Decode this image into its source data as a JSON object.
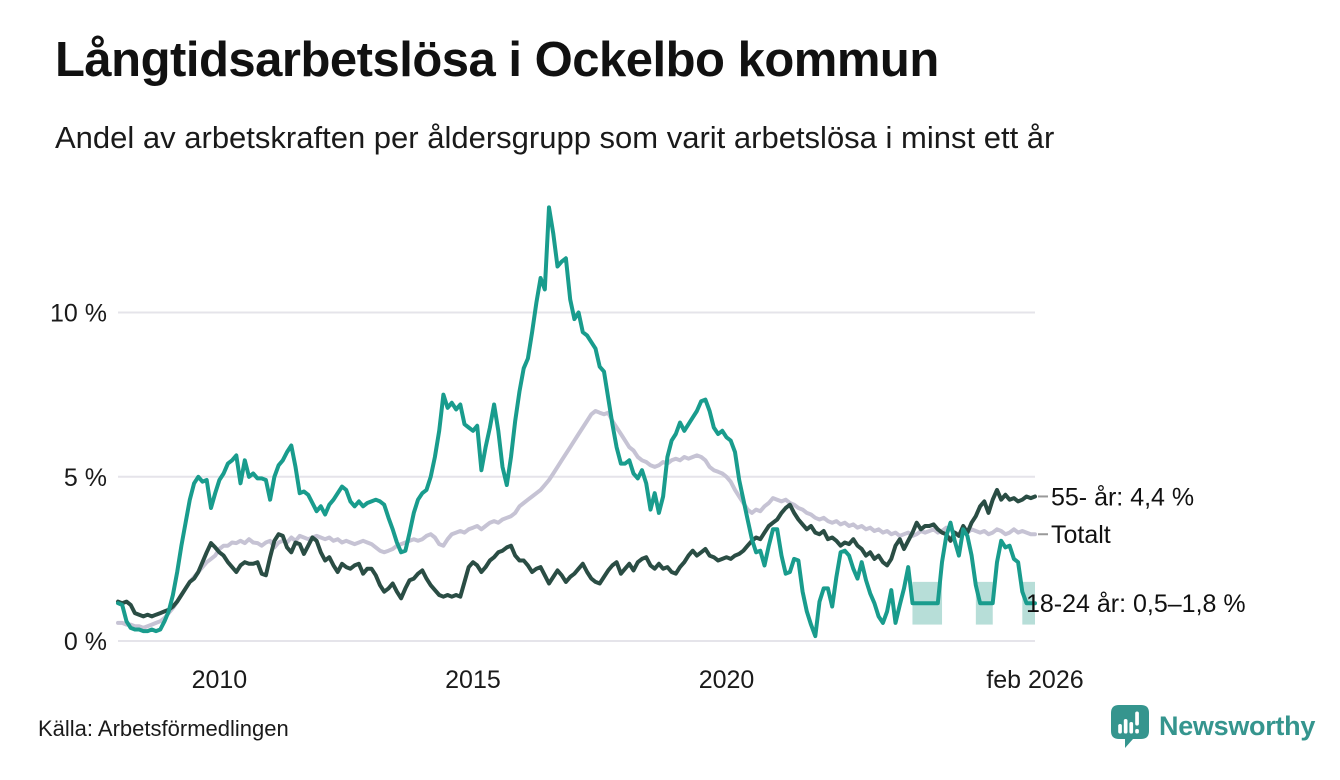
{
  "header": {
    "title": "Långtidsarbetslösa i Ockelbo kommun",
    "subtitle": "Andel av arbetskraften per åldersgrupp som varit arbetslösa i minst ett år"
  },
  "footer": {
    "source": "Källa: Arbetsförmedlingen",
    "logo_text": "Newsworthy"
  },
  "colors": {
    "teal_line": "#199c8d",
    "dark_line": "#2a4d44",
    "lavender_line": "#c6c3d4",
    "band_fill": "#b7ded8",
    "gridline": "#e5e4ea",
    "connector": "#999999",
    "text": "#1a1a1a",
    "logo_teal": "#35958e"
  },
  "chart_data": {
    "type": "line",
    "title": "Långtidsarbetslösa i Ockelbo kommun",
    "subtitle": "Andel av arbetskraften per åldersgrupp som varit arbetslösa i minst ett år",
    "unit": "%",
    "x_start": "2008-01",
    "x_end": "2026-02",
    "x_step": "month",
    "ylim": [
      0,
      13.6
    ],
    "grid": "horizontal-only",
    "legend": "end-of-line-labels",
    "y_ticks": [
      {
        "value": 0,
        "label": "0 %"
      },
      {
        "value": 5,
        "label": "5 %"
      },
      {
        "value": 10,
        "label": "10 %"
      }
    ],
    "x_ticks": [
      {
        "index": 24,
        "label": "2010"
      },
      {
        "index": 84,
        "label": "2015"
      },
      {
        "index": 144,
        "label": "2020"
      },
      {
        "index": 217,
        "label": "feb 2026"
      }
    ],
    "series": [
      {
        "name": "Totalt",
        "color_key": "lavender_line",
        "end_label": "Totalt",
        "connector": true,
        "values": [
          0.55,
          0.55,
          0.5,
          0.5,
          0.45,
          0.45,
          0.4,
          0.45,
          0.5,
          0.55,
          0.6,
          0.7,
          0.85,
          1.0,
          1.2,
          1.4,
          1.6,
          1.8,
          1.95,
          2.1,
          2.25,
          2.4,
          2.5,
          2.6,
          2.8,
          2.9,
          2.9,
          3.0,
          2.98,
          3.05,
          2.98,
          3.1,
          3.0,
          2.98,
          2.9,
          3.0,
          3.05,
          2.85,
          3.0,
          3.05,
          3.0,
          3.15,
          3.05,
          3.2,
          3.15,
          3.1,
          3.15,
          3.2,
          3.15,
          3.1,
          3.15,
          3.05,
          3.1,
          3.0,
          3.05,
          3.0,
          2.95,
          3.0,
          3.05,
          3.0,
          2.95,
          2.85,
          2.75,
          2.7,
          2.75,
          2.8,
          2.9,
          2.95,
          3.0,
          3.05,
          3.1,
          3.05,
          3.1,
          3.2,
          3.25,
          3.15,
          2.95,
          2.9,
          3.1,
          3.25,
          3.3,
          3.35,
          3.3,
          3.4,
          3.45,
          3.5,
          3.4,
          3.5,
          3.6,
          3.65,
          3.6,
          3.7,
          3.75,
          3.8,
          3.9,
          4.1,
          4.2,
          4.3,
          4.4,
          4.5,
          4.6,
          4.75,
          4.9,
          5.1,
          5.3,
          5.5,
          5.7,
          5.9,
          6.1,
          6.3,
          6.5,
          6.7,
          6.9,
          7.0,
          6.95,
          6.9,
          6.95,
          6.7,
          6.5,
          6.3,
          6.1,
          5.9,
          5.8,
          5.6,
          5.5,
          5.45,
          5.35,
          5.3,
          5.35,
          5.45,
          5.4,
          5.5,
          5.55,
          5.5,
          5.6,
          5.55,
          5.6,
          5.65,
          5.6,
          5.5,
          5.3,
          5.2,
          5.15,
          5.1,
          5.0,
          4.85,
          4.6,
          4.4,
          4.2,
          4.0,
          3.9,
          4.0,
          3.95,
          4.1,
          4.2,
          4.35,
          4.3,
          4.25,
          4.3,
          4.2,
          4.15,
          4.05,
          4.0,
          3.9,
          3.85,
          3.75,
          3.7,
          3.75,
          3.65,
          3.6,
          3.65,
          3.55,
          3.6,
          3.5,
          3.55,
          3.45,
          3.5,
          3.4,
          3.45,
          3.35,
          3.4,
          3.3,
          3.35,
          3.25,
          3.3,
          3.2,
          3.25,
          3.3,
          3.2,
          3.25,
          3.35,
          3.3,
          3.35,
          3.4,
          3.3,
          3.35,
          3.45,
          3.4,
          3.3,
          3.25,
          3.35,
          3.3,
          3.4,
          3.35,
          3.3,
          3.35,
          3.25,
          3.3,
          3.4,
          3.35,
          3.25,
          3.3,
          3.4,
          3.3,
          3.35,
          3.3,
          3.25,
          3.25
        ]
      },
      {
        "name": "55- år",
        "color_key": "dark_line",
        "end_label": "55- år: 4,4 %",
        "connector": true,
        "values": [
          1.2,
          1.15,
          1.2,
          1.1,
          0.85,
          0.8,
          0.75,
          0.8,
          0.75,
          0.8,
          0.85,
          0.9,
          0.95,
          1.05,
          1.2,
          1.4,
          1.6,
          1.8,
          1.9,
          2.1,
          2.4,
          2.7,
          2.98,
          2.85,
          2.7,
          2.6,
          2.4,
          2.25,
          2.1,
          2.3,
          2.4,
          2.35,
          2.35,
          2.4,
          2.05,
          2.0,
          2.55,
          3.05,
          3.25,
          3.2,
          2.85,
          2.7,
          3.0,
          2.95,
          2.65,
          2.9,
          3.15,
          3.05,
          2.7,
          2.45,
          2.55,
          2.3,
          2.1,
          2.35,
          2.25,
          2.2,
          2.3,
          2.35,
          2.05,
          2.2,
          2.2,
          2.0,
          1.7,
          1.5,
          1.6,
          1.75,
          1.5,
          1.3,
          1.6,
          1.85,
          1.9,
          2.05,
          2.15,
          1.9,
          1.7,
          1.55,
          1.4,
          1.35,
          1.4,
          1.35,
          1.4,
          1.35,
          1.8,
          2.25,
          2.4,
          2.3,
          2.1,
          2.25,
          2.45,
          2.55,
          2.7,
          2.75,
          2.85,
          2.9,
          2.6,
          2.45,
          2.45,
          2.3,
          2.1,
          2.2,
          2.25,
          2.0,
          1.75,
          1.95,
          2.15,
          2.0,
          1.8,
          1.95,
          2.05,
          2.2,
          2.35,
          2.1,
          1.9,
          1.8,
          1.75,
          1.95,
          2.15,
          2.3,
          2.4,
          2.05,
          2.2,
          2.35,
          2.15,
          2.4,
          2.5,
          2.55,
          2.3,
          2.2,
          2.35,
          2.2,
          2.25,
          2.1,
          2.05,
          2.25,
          2.4,
          2.6,
          2.75,
          2.6,
          2.7,
          2.8,
          2.6,
          2.55,
          2.45,
          2.5,
          2.55,
          2.5,
          2.6,
          2.65,
          2.75,
          2.9,
          3.05,
          3.15,
          3.1,
          3.3,
          3.5,
          3.6,
          3.7,
          3.9,
          4.05,
          4.15,
          3.9,
          3.7,
          3.55,
          3.4,
          3.5,
          3.3,
          3.25,
          3.35,
          3.1,
          3.15,
          3.05,
          2.9,
          3.0,
          2.95,
          3.1,
          2.9,
          2.8,
          2.6,
          2.7,
          2.5,
          2.6,
          2.4,
          2.3,
          2.5,
          2.9,
          3.1,
          2.8,
          3.05,
          3.3,
          3.6,
          3.4,
          3.5,
          3.5,
          3.55,
          3.4,
          3.3,
          3.25,
          3.05,
          3.3,
          3.2,
          3.5,
          3.3,
          3.6,
          3.8,
          4.1,
          4.25,
          3.9,
          4.3,
          4.6,
          4.3,
          4.45,
          4.3,
          4.35,
          4.25,
          4.3,
          4.4,
          4.35,
          4.4
        ]
      },
      {
        "name": "18-24 år",
        "color_key": "teal_line",
        "end_label": "18-24 år: 0,5–1,8 %",
        "connector": false,
        "values": [
          1.15,
          1.1,
          0.6,
          0.4,
          0.35,
          0.35,
          0.3,
          0.3,
          0.35,
          0.3,
          0.35,
          0.6,
          0.9,
          1.4,
          2.1,
          2.9,
          3.6,
          4.3,
          4.8,
          5.0,
          4.85,
          4.9,
          4.05,
          4.5,
          4.9,
          5.1,
          5.4,
          5.5,
          5.65,
          4.8,
          5.5,
          5.0,
          5.1,
          4.95,
          4.95,
          4.9,
          4.3,
          5.0,
          5.35,
          5.5,
          5.75,
          5.95,
          5.3,
          4.5,
          4.55,
          4.45,
          4.2,
          3.95,
          4.1,
          3.85,
          4.15,
          4.3,
          4.5,
          4.7,
          4.6,
          4.25,
          4.1,
          4.25,
          4.1,
          4.2,
          4.25,
          4.3,
          4.25,
          4.15,
          3.75,
          3.4,
          3.0,
          2.7,
          2.75,
          3.3,
          3.9,
          4.3,
          4.5,
          4.6,
          5.0,
          5.6,
          6.4,
          7.5,
          7.1,
          7.25,
          7.05,
          7.2,
          6.6,
          6.5,
          6.4,
          6.55,
          5.2,
          5.9,
          6.5,
          7.2,
          6.4,
          5.3,
          4.75,
          5.6,
          6.7,
          7.6,
          8.3,
          8.6,
          9.4,
          10.3,
          11.05,
          10.7,
          13.2,
          12.4,
          11.4,
          11.55,
          11.65,
          10.4,
          9.8,
          10.0,
          9.4,
          9.3,
          9.1,
          8.9,
          8.35,
          8.2,
          7.4,
          6.6,
          5.9,
          5.4,
          5.4,
          5.5,
          5.1,
          4.95,
          5.2,
          4.8,
          4.0,
          4.5,
          3.9,
          4.4,
          5.6,
          6.1,
          6.3,
          6.65,
          6.4,
          6.6,
          6.8,
          7.0,
          7.3,
          7.35,
          7.0,
          6.5,
          6.3,
          6.4,
          6.2,
          6.1,
          5.75,
          4.9,
          4.3,
          3.7,
          3.1,
          2.7,
          2.75,
          2.3,
          2.9,
          3.4,
          3.4,
          2.6,
          2.05,
          2.1,
          2.5,
          2.45,
          1.5,
          0.9,
          0.5,
          0.15,
          1.2,
          1.6,
          1.6,
          1.05,
          1.95,
          2.7,
          2.75,
          2.6,
          2.2,
          1.9,
          2.4,
          1.85,
          1.45,
          1.15,
          0.75,
          0.55,
          0.9,
          1.55,
          0.55,
          1.1,
          1.6,
          2.25,
          1.15,
          1.15,
          1.15,
          1.15,
          1.15,
          1.15,
          1.15,
          2.4,
          3.2,
          3.6,
          3.05,
          2.6,
          3.4,
          3.2,
          2.6,
          1.7,
          1.15,
          1.15,
          1.15,
          1.15,
          2.4,
          3.05,
          2.85,
          2.9,
          2.5,
          2.4,
          1.5,
          1.15,
          1.15,
          1.15
        ]
      }
    ],
    "uncertainty_bands": {
      "series": "18-24 år",
      "low": 0.5,
      "high": 1.8,
      "label": "0,5–1,8 %",
      "ranges": [
        [
          188,
          195
        ],
        [
          203,
          207
        ],
        [
          214,
          217
        ]
      ]
    }
  }
}
